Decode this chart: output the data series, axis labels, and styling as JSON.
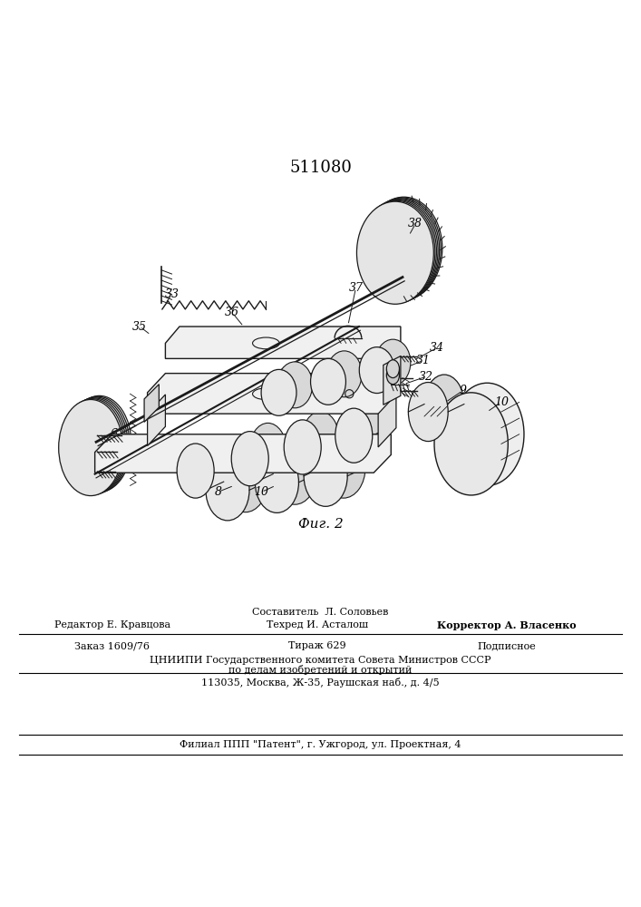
{
  "patent_number": "511080",
  "fig_caption": "Фиг. 2",
  "background_color": "#ffffff",
  "text_color": "#000000",
  "line_color": "#1a1a1a",
  "bottom_texts": {
    "compiler": "Составитель  Л. Соловьев",
    "editor": "Редактор Е. Кравцова",
    "techred": "Техред И. Асталош",
    "corrector": "Корректор А. Власенко",
    "order": "Заказ 1609/76",
    "tirazh": "Тираж 629",
    "podpisnoe": "Подписное",
    "tsniipi": "ЦНИИПИ Государственного комитета Совета Министров СССР",
    "podelam": "по делам изобретений и открытий",
    "address": "113035, Москва, Ж-35, Раушская наб., д. 4/5",
    "filial": "Филиал ППП \"Патент\", г. Ужгород, ул. Проектная, 4"
  }
}
